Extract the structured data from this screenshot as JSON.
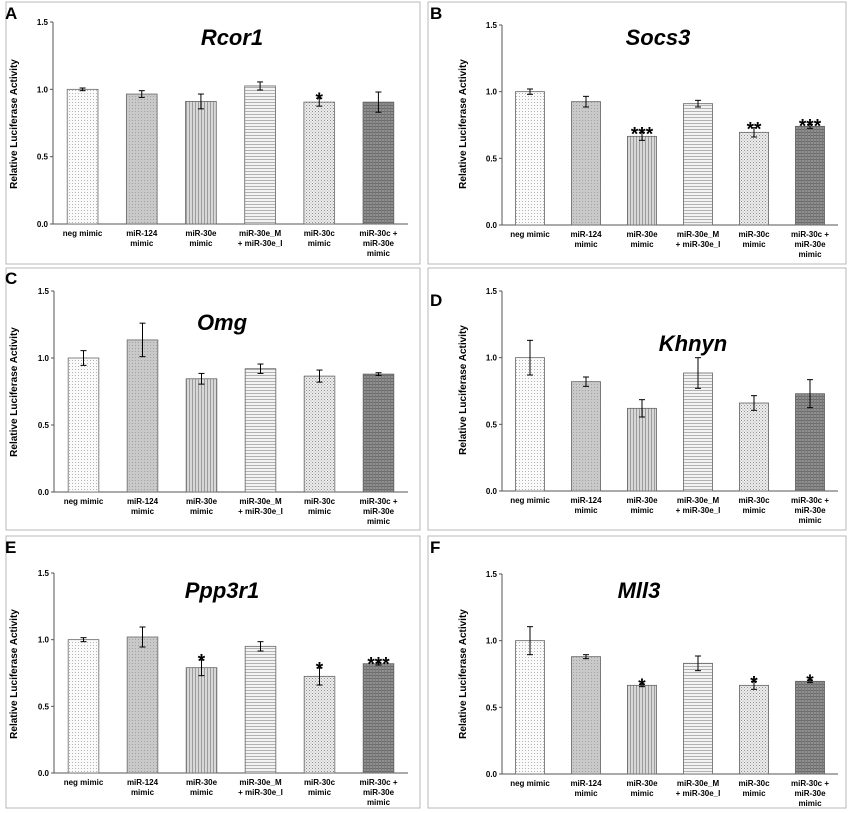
{
  "chart_data": [
    {
      "panel": "A",
      "type": "bar",
      "title": "Rcor1",
      "ylabel": "Relative Luciferase Activity",
      "ylim": [
        0,
        1.5
      ],
      "yticks": [
        "0.0",
        "0.5",
        "1.0",
        "1.5"
      ],
      "categories": [
        [
          "neg mimic"
        ],
        [
          "miR-124",
          "mimic"
        ],
        [
          "miR-30e",
          "mimic"
        ],
        [
          "miR-30e_M",
          "+ miR-30e_I"
        ],
        [
          "miR-30c",
          "mimic"
        ],
        [
          "miR-30c +",
          "miR-30e",
          "mimic"
        ]
      ],
      "values": [
        1.0,
        0.965,
        0.91,
        1.025,
        0.905,
        0.905
      ],
      "errors": [
        0.01,
        0.025,
        0.055,
        0.03,
        0.03,
        0.075
      ],
      "significance": [
        "",
        "",
        "",
        "",
        "*",
        ""
      ]
    },
    {
      "panel": "B",
      "type": "bar",
      "title": "Socs3",
      "ylabel": "Relative Luciferase Activity",
      "ylim": [
        0,
        1.5
      ],
      "yticks": [
        "0.0",
        "0.5",
        "1.0",
        "1.5"
      ],
      "categories": [
        [
          "neg mimic"
        ],
        [
          "miR-124",
          "mimic"
        ],
        [
          "miR-30e",
          "mimic"
        ],
        [
          "miR-30e_M",
          "+ miR-30e_I"
        ],
        [
          "miR-30c",
          "mimic"
        ],
        [
          "miR-30c +",
          "miR-30e",
          "mimic"
        ]
      ],
      "values": [
        1.0,
        0.925,
        0.665,
        0.91,
        0.695,
        0.74
      ],
      "errors": [
        0.02,
        0.04,
        0.03,
        0.025,
        0.035,
        0.015
      ],
      "significance": [
        "",
        "",
        "***",
        "",
        "**",
        "***"
      ]
    },
    {
      "panel": "C",
      "type": "bar",
      "title": "Omg",
      "ylabel": "Relative Luciferase Activity",
      "ylim": [
        0,
        1.5
      ],
      "yticks": [
        "0.0",
        "0.5",
        "1.0",
        "1.5"
      ],
      "categories": [
        [
          "neg mimic"
        ],
        [
          "miR-124",
          "mimic"
        ],
        [
          "miR-30e",
          "mimic"
        ],
        [
          "miR-30e_M",
          "+ miR-30e_I"
        ],
        [
          "miR-30c",
          "mimic"
        ],
        [
          "miR-30c +",
          "miR-30e",
          "mimic"
        ]
      ],
      "values": [
        1.0,
        1.135,
        0.845,
        0.92,
        0.865,
        0.88
      ],
      "errors": [
        0.055,
        0.125,
        0.04,
        0.035,
        0.045,
        0.01
      ],
      "significance": [
        "",
        "",
        "",
        "",
        "",
        ""
      ]
    },
    {
      "panel": "D",
      "type": "bar",
      "title": "Khnyn",
      "ylabel": "Relative Luciferase Activity",
      "ylim": [
        0,
        1.5
      ],
      "yticks": [
        "0.0",
        "0.5",
        "1.0",
        "1.5"
      ],
      "categories": [
        [
          "neg mimic"
        ],
        [
          "miR-124",
          "mimic"
        ],
        [
          "miR-30e",
          "mimic"
        ],
        [
          "miR-30e_M",
          "+ miR-30e_I"
        ],
        [
          "miR-30c",
          "mimic"
        ],
        [
          "miR-30c +",
          "miR-30e",
          "mimic"
        ]
      ],
      "values": [
        1.0,
        0.82,
        0.62,
        0.885,
        0.66,
        0.73
      ],
      "errors": [
        0.13,
        0.035,
        0.065,
        0.115,
        0.055,
        0.105
      ],
      "significance": [
        "",
        "",
        "",
        "",
        "",
        ""
      ]
    },
    {
      "panel": "E",
      "type": "bar",
      "title": "Ppp3r1",
      "ylabel": "Relative Luciferase Activity",
      "ylim": [
        0,
        1.5
      ],
      "yticks": [
        "0.0",
        "0.5",
        "1.0",
        "1.5"
      ],
      "categories": [
        [
          "neg mimic"
        ],
        [
          "miR-124",
          "mimic"
        ],
        [
          "miR-30e",
          "mimic"
        ],
        [
          "miR-30e_M",
          "+ miR-30e_I"
        ],
        [
          "miR-30c",
          "mimic"
        ],
        [
          "miR-30c +",
          "miR-30e",
          "mimic"
        ]
      ],
      "values": [
        1.0,
        1.02,
        0.79,
        0.95,
        0.725,
        0.82
      ],
      "errors": [
        0.015,
        0.075,
        0.06,
        0.035,
        0.065,
        0.01
      ],
      "significance": [
        "",
        "",
        "*",
        "",
        "*",
        "***"
      ]
    },
    {
      "panel": "F",
      "type": "bar",
      "title": "Mll3",
      "ylabel": "Relative Luciferase Activity",
      "ylim": [
        0,
        1.5
      ],
      "yticks": [
        "0.0",
        "0.5",
        "1.0",
        "1.5"
      ],
      "categories": [
        [
          "neg mimic"
        ],
        [
          "miR-124",
          "mimic"
        ],
        [
          "miR-30e",
          "mimic"
        ],
        [
          "miR-30e_M",
          "+ miR-30e_I"
        ],
        [
          "miR-30c",
          "mimic"
        ],
        [
          "miR-30c +",
          "miR-30e",
          "mimic"
        ]
      ],
      "values": [
        1.0,
        0.88,
        0.665,
        0.83,
        0.665,
        0.695
      ],
      "errors": [
        0.105,
        0.015,
        0.01,
        0.055,
        0.03,
        0.01
      ],
      "significance": [
        "",
        "",
        "*",
        "",
        "*",
        "*"
      ]
    }
  ],
  "colors": {
    "fills": [
      "#f4f4f4",
      "#d2d2d2",
      "#c4c4c4",
      "#eeeeee",
      "#e0e0e0",
      "#8c8c8c"
    ]
  }
}
